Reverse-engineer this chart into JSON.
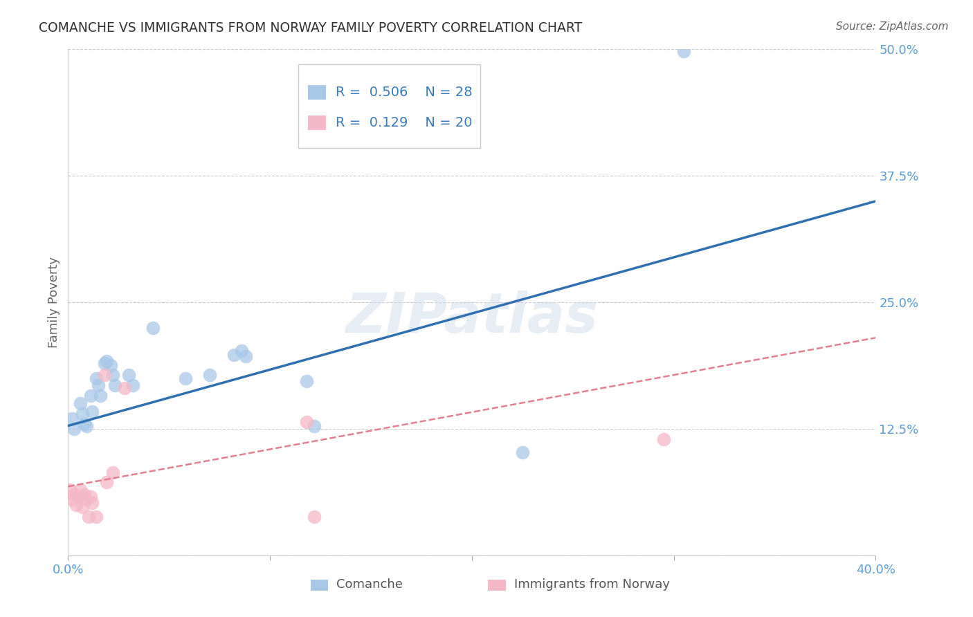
{
  "title": "COMANCHE VS IMMIGRANTS FROM NORWAY FAMILY POVERTY CORRELATION CHART",
  "source": "Source: ZipAtlas.com",
  "ylabel": "Family Poverty",
  "xlim": [
    0.0,
    0.4
  ],
  "ylim": [
    0.0,
    0.5
  ],
  "xticks": [
    0.0,
    0.1,
    0.2,
    0.3,
    0.4
  ],
  "xtick_labels": [
    "0.0%",
    "",
    "",
    "",
    "40.0%"
  ],
  "yticks": [
    0.0,
    0.125,
    0.25,
    0.375,
    0.5
  ],
  "ytick_labels": [
    "",
    "12.5%",
    "25.0%",
    "37.5%",
    "50.0%"
  ],
  "blue_R": 0.506,
  "blue_N": 28,
  "pink_R": 0.129,
  "pink_N": 20,
  "blue_color": "#a8c8e8",
  "pink_color": "#f4b8c8",
  "blue_line_color": "#3070b0",
  "pink_line_color": "#e08090",
  "background_color": "#ffffff",
  "watermark": "ZIPatlas",
  "blue_x": [
    0.002,
    0.003,
    0.006,
    0.007,
    0.008,
    0.009,
    0.011,
    0.012,
    0.014,
    0.015,
    0.016,
    0.018,
    0.019,
    0.021,
    0.022,
    0.023,
    0.03,
    0.032,
    0.042,
    0.058,
    0.07,
    0.082,
    0.086,
    0.088,
    0.118,
    0.122,
    0.225,
    0.305
  ],
  "blue_y": [
    0.135,
    0.125,
    0.15,
    0.14,
    0.13,
    0.128,
    0.158,
    0.142,
    0.175,
    0.168,
    0.158,
    0.19,
    0.192,
    0.188,
    0.178,
    0.168,
    0.178,
    0.168,
    0.225,
    0.175,
    0.178,
    0.198,
    0.202,
    0.197,
    0.172,
    0.128,
    0.102,
    0.498
  ],
  "pink_x": [
    0.001,
    0.002,
    0.003,
    0.004,
    0.005,
    0.006,
    0.007,
    0.008,
    0.009,
    0.01,
    0.011,
    0.012,
    0.014,
    0.018,
    0.019,
    0.022,
    0.028,
    0.118,
    0.122,
    0.295
  ],
  "pink_y": [
    0.065,
    0.055,
    0.06,
    0.05,
    0.058,
    0.065,
    0.048,
    0.06,
    0.055,
    0.038,
    0.058,
    0.052,
    0.038,
    0.178,
    0.072,
    0.082,
    0.165,
    0.132,
    0.038,
    0.115
  ],
  "blue_line_x0": 0.0,
  "blue_line_y0": 0.128,
  "blue_line_x1": 0.4,
  "blue_line_y1": 0.35,
  "pink_line_x0": 0.0,
  "pink_line_y0": 0.068,
  "pink_line_x1": 0.4,
  "pink_line_y1": 0.215
}
